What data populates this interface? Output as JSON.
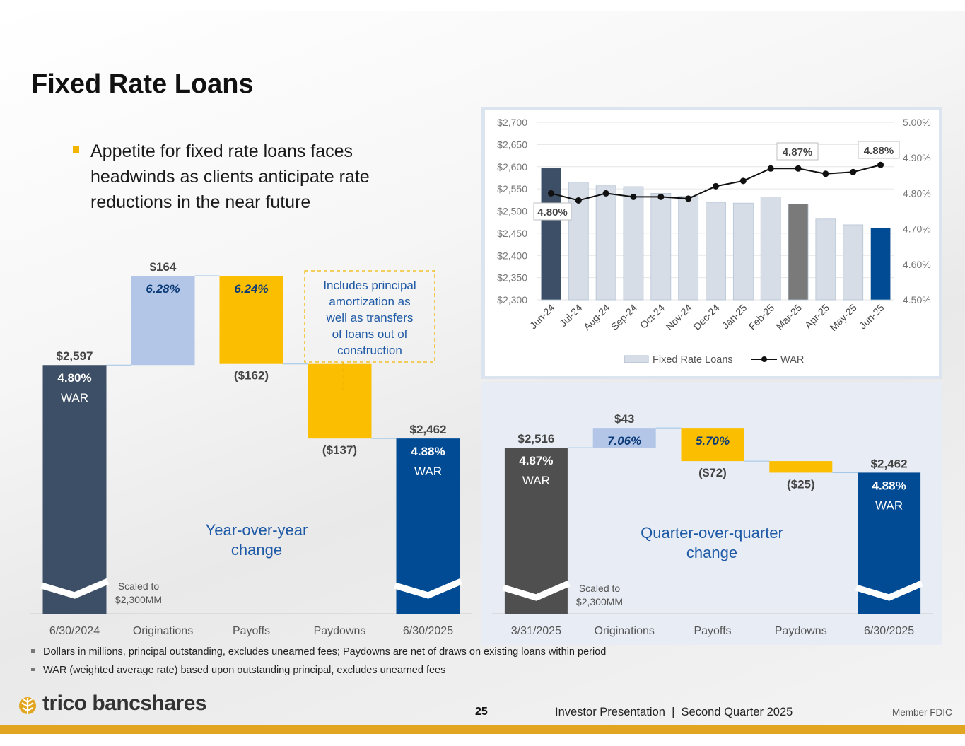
{
  "page": {
    "title": "Fixed Rate Loans",
    "bullet": "Appetite for fixed rate loans faces headwinds as clients anticipate rate reductions in the near future",
    "footnotes": [
      "Dollars in millions, principal outstanding, excludes unearned fees; Paydowns are net of draws on existing loans within period",
      "WAR (weighted average rate) based upon outstanding principal, excludes unearned fees"
    ],
    "brand": "trico bancshares",
    "page_number": "25",
    "presentation": "Investor Presentation  |  Second Quarter 2025",
    "member_fdic": "Member FDIC"
  },
  "colors": {
    "dark": "#3d4f66",
    "navy": "#004b94",
    "light_blue": "#b3c6e7",
    "gold": "#fbbe01",
    "gray": "#7a7a7a",
    "charcoal": "#4f4f4f",
    "bar_light": "#d6dde6",
    "label_blue": "#0b3a78",
    "text_gray": "#444444",
    "axis_gray": "#777777",
    "bullet_gold": "#f3b600"
  },
  "chart_data": [
    {
      "type": "waterfall",
      "caption": "Year-over-year change",
      "categories": [
        "6/30/2024",
        "Originations",
        "Payoffs",
        "Paydowns",
        "6/30/2025"
      ],
      "values": [
        2597,
        164,
        -162,
        -137,
        2462
      ],
      "value_labels": [
        "$2,597",
        "$164",
        "($162)",
        "($137)",
        "$2,462"
      ],
      "rate_labels": [
        "4.80%",
        "6.28%",
        "6.24%",
        "",
        "4.88%"
      ],
      "war_label": "WAR",
      "axis_break_note": "Scaled to $2,300MM",
      "callout": "Includes principal amortization as well as transfers of loans out of construction"
    },
    {
      "type": "bar+line",
      "categories": [
        "Jun-24",
        "Jul-24",
        "Aug-24",
        "Sep-24",
        "Oct-24",
        "Nov-24",
        "Dec-24",
        "Jan-25",
        "Feb-25",
        "Mar-25",
        "Apr-25",
        "May-25",
        "Jun-25"
      ],
      "series": [
        {
          "name": "Fixed Rate Loans",
          "type": "bar",
          "axis": "left",
          "values": [
            2597,
            2565,
            2557,
            2555,
            2540,
            2533,
            2520,
            2518,
            2532,
            2516,
            2482,
            2469,
            2462
          ]
        },
        {
          "name": "WAR",
          "type": "line",
          "axis": "right",
          "values": [
            4.8,
            4.78,
            4.8,
            4.79,
            4.79,
            4.785,
            4.82,
            4.835,
            4.87,
            4.87,
            4.855,
            4.86,
            4.88
          ]
        }
      ],
      "left_axis": {
        "min": 2300,
        "max": 2700,
        "ticks": [
          "$2,300",
          "$2,350",
          "$2,400",
          "$2,450",
          "$2,500",
          "$2,550",
          "$2,600",
          "$2,650",
          "$2,700"
        ]
      },
      "right_axis": {
        "min": 4.5,
        "max": 5.0,
        "ticks": [
          "4.50%",
          "4.60%",
          "4.70%",
          "4.80%",
          "4.90%",
          "5.00%"
        ]
      },
      "annotations": [
        "4.80%",
        "4.87%",
        "4.88%"
      ],
      "legend_position": "bottom"
    },
    {
      "type": "waterfall",
      "caption": "Quarter-over-quarter change",
      "categories": [
        "3/31/2025",
        "Originations",
        "Payoffs",
        "Paydowns",
        "6/30/2025"
      ],
      "values": [
        2516,
        43,
        -72,
        -25,
        2462
      ],
      "value_labels": [
        "$2,516",
        "$43",
        "($72)",
        "($25)",
        "$2,462"
      ],
      "rate_labels": [
        "4.87%",
        "7.06%",
        "5.70%",
        "",
        "4.88%"
      ],
      "war_label": "WAR",
      "axis_break_note": "Scaled to $2,300MM"
    }
  ]
}
